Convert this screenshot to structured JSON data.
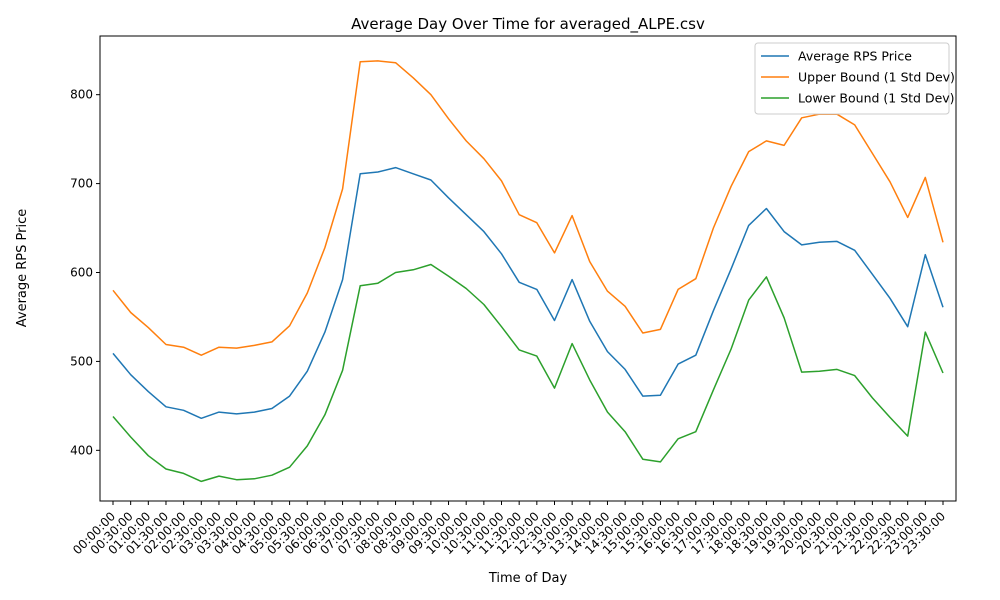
{
  "chart_data": {
    "type": "line",
    "title": "Average Day Over Time for averaged_ALPE.csv",
    "xlabel": "Time of Day",
    "ylabel": "Average RPS Price",
    "ylim": [
      343,
      866
    ],
    "yticks": [
      400,
      500,
      600,
      700,
      800
    ],
    "grid": false,
    "legend_position": "top-right",
    "x": [
      "00:00:00",
      "00:30:00",
      "01:00:00",
      "01:30:00",
      "02:00:00",
      "02:30:00",
      "03:00:00",
      "03:30:00",
      "04:00:00",
      "04:30:00",
      "05:00:00",
      "05:30:00",
      "06:00:00",
      "06:30:00",
      "07:00:00",
      "07:30:00",
      "08:00:00",
      "08:30:00",
      "09:00:00",
      "09:30:00",
      "10:00:00",
      "10:30:00",
      "11:00:00",
      "11:30:00",
      "12:00:00",
      "12:30:00",
      "13:00:00",
      "13:30:00",
      "14:00:00",
      "14:30:00",
      "15:00:00",
      "15:30:00",
      "16:00:00",
      "16:30:00",
      "17:00:00",
      "17:30:00",
      "18:00:00",
      "18:30:00",
      "19:00:00",
      "19:30:00",
      "20:00:00",
      "20:30:00",
      "21:00:00",
      "21:30:00",
      "22:00:00",
      "22:30:00",
      "23:00:00",
      "23:30:00"
    ],
    "series": [
      {
        "name": "Average RPS Price",
        "color": "#1f77b4",
        "values": [
          509,
          485,
          466,
          449,
          445,
          436,
          443,
          441,
          443,
          447,
          461,
          489,
          533,
          592,
          711,
          713,
          718,
          711,
          704,
          684,
          665,
          646,
          621,
          589,
          581,
          546,
          592,
          545,
          511,
          491,
          461,
          462,
          497,
          507,
          557,
          604,
          653,
          672,
          646,
          631,
          634,
          635,
          625,
          598,
          571,
          539,
          620,
          561
        ]
      },
      {
        "name": "Upper Bound (1 Std Dev)",
        "color": "#ff7f0e",
        "values": [
          580,
          555,
          538,
          519,
          516,
          507,
          516,
          515,
          518,
          522,
          540,
          577,
          628,
          694,
          837,
          838,
          836,
          819,
          800,
          773,
          748,
          728,
          703,
          665,
          656,
          622,
          664,
          612,
          579,
          562,
          532,
          536,
          581,
          593,
          650,
          697,
          736,
          748,
          743,
          774,
          778,
          778,
          766,
          734,
          702,
          662,
          707,
          634
        ]
      },
      {
        "name": "Lower Bound (1 Std Dev)",
        "color": "#2ca02c",
        "values": [
          438,
          415,
          394,
          379,
          374,
          365,
          371,
          367,
          368,
          372,
          381,
          405,
          440,
          490,
          585,
          588,
          600,
          603,
          609,
          596,
          582,
          564,
          539,
          513,
          506,
          470,
          520,
          479,
          443,
          421,
          390,
          387,
          413,
          421,
          468,
          514,
          569,
          595,
          549,
          488,
          489,
          491,
          484,
          459,
          437,
          416,
          533,
          487
        ]
      }
    ]
  }
}
